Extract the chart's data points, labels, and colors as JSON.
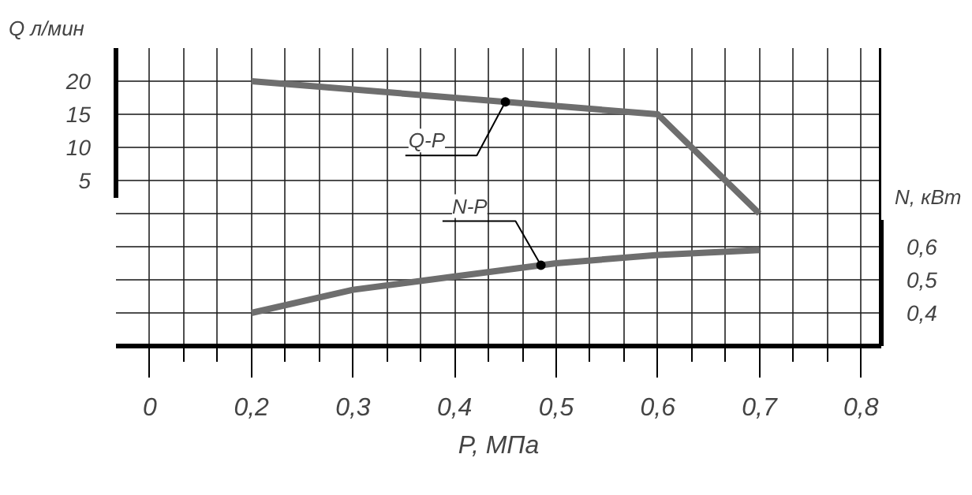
{
  "chart_data": {
    "type": "line",
    "xlabel": "P, МПа",
    "ylabel": "Q л/мин",
    "y2label": "N, кВт",
    "xlim": [
      0.0667,
      0.82
    ],
    "ylim": [
      -20,
      25
    ],
    "y2lim": [
      0.3,
      1.2
    ],
    "xticks": [
      {
        "value": 0.1,
        "label": "0"
      },
      {
        "value": 0.2,
        "label": "0,2"
      },
      {
        "value": 0.3,
        "label": "0,3"
      },
      {
        "value": 0.4,
        "label": "0,4"
      },
      {
        "value": 0.5,
        "label": "0,5"
      },
      {
        "value": 0.6,
        "label": "0,6"
      },
      {
        "value": 0.7,
        "label": "0,7"
      },
      {
        "value": 0.8,
        "label": "0,8"
      }
    ],
    "yticks": [
      5,
      10,
      15,
      20
    ],
    "y2ticks": [
      {
        "value": 0.4,
        "label": "0,4"
      },
      {
        "value": 0.5,
        "label": "0,5"
      },
      {
        "value": 0.6,
        "label": "0,6"
      }
    ],
    "grid": true,
    "series": [
      {
        "name": "Q-P",
        "color": "#6e6e6e",
        "x": [
          0.2,
          0.6,
          0.7
        ],
        "values": [
          20,
          15,
          0
        ]
      },
      {
        "name": "N-P",
        "color": "#6e6e6e",
        "axis": "y2",
        "x": [
          0.2,
          0.3,
          0.4,
          0.5,
          0.6,
          0.7
        ],
        "values": [
          0.4,
          0.47,
          0.51,
          0.55,
          0.575,
          0.59
        ]
      }
    ]
  }
}
